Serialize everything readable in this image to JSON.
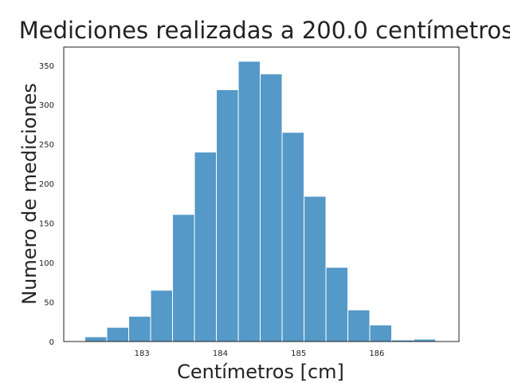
{
  "chart_data": {
    "type": "bar",
    "title": "Mediciones realizadas a 200.0 centímetros",
    "xlabel": "Centímetros [cm]",
    "ylabel": "Numero de mediciones",
    "bins": [
      {
        "start": 182.27,
        "end": 182.55,
        "count": 6
      },
      {
        "start": 182.55,
        "end": 182.83,
        "count": 18
      },
      {
        "start": 182.83,
        "end": 183.11,
        "count": 32
      },
      {
        "start": 183.11,
        "end": 183.39,
        "count": 65
      },
      {
        "start": 183.39,
        "end": 183.67,
        "count": 161
      },
      {
        "start": 183.67,
        "end": 183.95,
        "count": 240
      },
      {
        "start": 183.95,
        "end": 184.23,
        "count": 319
      },
      {
        "start": 184.23,
        "end": 184.51,
        "count": 355
      },
      {
        "start": 184.51,
        "end": 184.79,
        "count": 339
      },
      {
        "start": 184.79,
        "end": 185.07,
        "count": 265
      },
      {
        "start": 185.07,
        "end": 185.35,
        "count": 184
      },
      {
        "start": 185.35,
        "end": 185.63,
        "count": 94
      },
      {
        "start": 185.63,
        "end": 185.91,
        "count": 40
      },
      {
        "start": 185.91,
        "end": 186.19,
        "count": 21
      },
      {
        "start": 186.19,
        "end": 186.47,
        "count": 2
      },
      {
        "start": 186.47,
        "end": 186.75,
        "count": 3
      }
    ],
    "xlim": [
      182.0,
      187.05
    ],
    "ylim": [
      0,
      373
    ],
    "xticks": [
      183,
      184,
      185,
      186
    ],
    "yticks": [
      0,
      50,
      100,
      150,
      200,
      250,
      300,
      350
    ],
    "bar_color": "#5499c7",
    "edge_color": "#ffffff",
    "grid": false
  }
}
